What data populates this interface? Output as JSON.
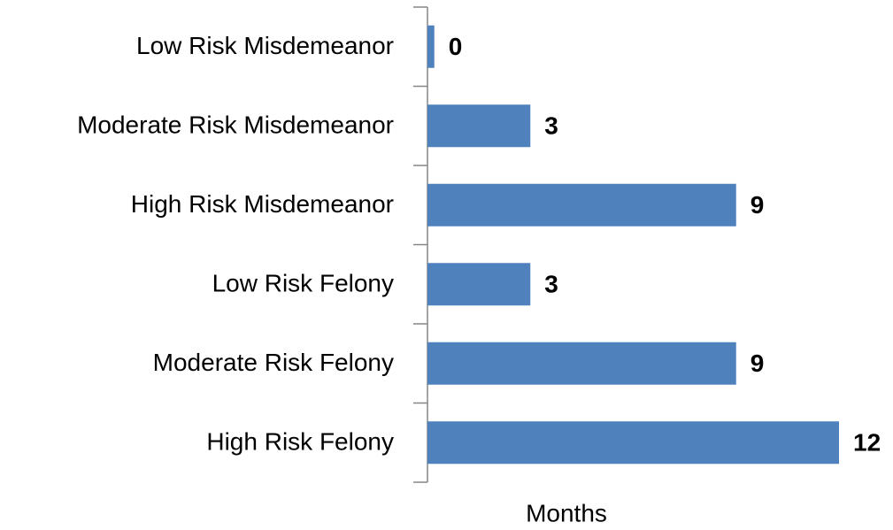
{
  "chart_data": {
    "type": "barh",
    "categories": [
      "Low Risk Misdemeanor",
      "Moderate Risk Misdemeanor",
      "High Risk Misdemeanor",
      "Low Risk Felony",
      "Moderate Risk Felony",
      "High Risk Felony"
    ],
    "values": [
      0.2,
      3,
      9,
      3,
      9,
      12
    ],
    "value_labels": [
      "0",
      "3",
      "9",
      "3",
      "9",
      "12"
    ],
    "color": "#4f81bd",
    "xlim": [
      0,
      12
    ],
    "xlabel": "Months"
  }
}
